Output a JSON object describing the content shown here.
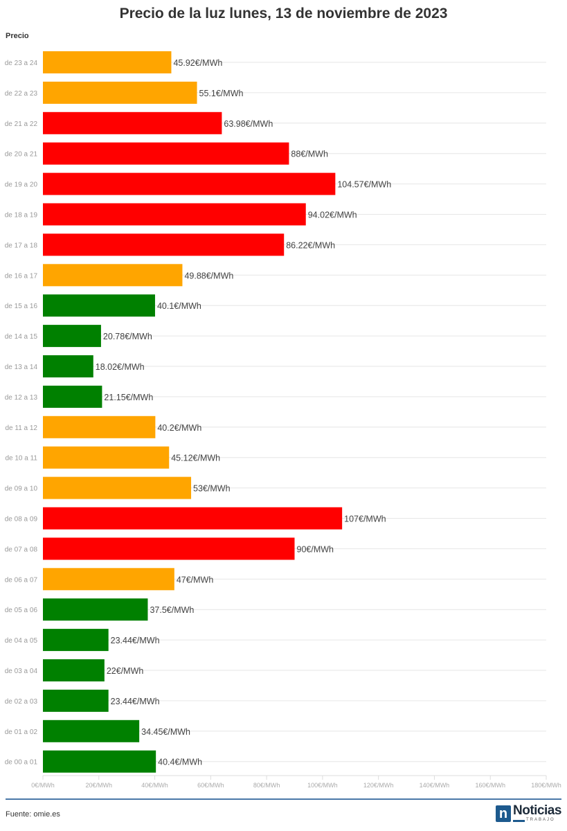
{
  "chart_data": {
    "type": "bar",
    "orientation": "horizontal",
    "title": "Precio de la luz lunes, 13 de noviembre de 2023",
    "ylabel": "Precio",
    "xlim": [
      0,
      180
    ],
    "xticks": [
      "0€/MWh",
      "20€/MWh",
      "40€/MWh",
      "60€/MWh",
      "80€/MWh",
      "100€/MWh",
      "120€/MWh",
      "140€/MWh",
      "160€/MWh",
      "180€/MWh"
    ],
    "grid": true,
    "unit": "€/MWh",
    "colors": {
      "green": "#008000",
      "orange": "#ffa500",
      "red": "#ff0000"
    },
    "categories": [
      "de 23 a 24",
      "de 22 a 23",
      "de 21 a 22",
      "de 20 a 21",
      "de 19 a 20",
      "de 18 a 19",
      "de 17 a 18",
      "de 16 a 17",
      "de 15 a 16",
      "de 14 a 15",
      "de 13 a 14",
      "de 12 a 13",
      "de 11 a 12",
      "de 10 a 11",
      "de 09 a 10",
      "de 08 a 09",
      "de 07 a 08",
      "de 06 a 07",
      "de 05 a 06",
      "de 04 a 05",
      "de 03 a 04",
      "de 02 a 03",
      "de 01 a 02",
      "de 00 a 01"
    ],
    "values": [
      45.92,
      55.1,
      63.98,
      88,
      104.57,
      94.02,
      86.22,
      49.88,
      40.1,
      20.78,
      18.02,
      21.15,
      40.2,
      45.12,
      53,
      107,
      90,
      47,
      37.5,
      23.44,
      22,
      23.44,
      34.45,
      40.4
    ],
    "labels": [
      "45.92€/MWh",
      "55.1€/MWh",
      "63.98€/MWh",
      "88€/MWh",
      "104.57€/MWh",
      "94.02€/MWh",
      "86.22€/MWh",
      "49.88€/MWh",
      "40.1€/MWh",
      "20.78€/MWh",
      "18.02€/MWh",
      "21.15€/MWh",
      "40.2€/MWh",
      "45.12€/MWh",
      "53€/MWh",
      "107€/MWh",
      "90€/MWh",
      "47€/MWh",
      "37.5€/MWh",
      "23.44€/MWh",
      "22€/MWh",
      "23.44€/MWh",
      "34.45€/MWh",
      "40.4€/MWh"
    ],
    "bar_colors": [
      "orange",
      "orange",
      "red",
      "red",
      "red",
      "red",
      "red",
      "orange",
      "green",
      "green",
      "green",
      "green",
      "orange",
      "orange",
      "orange",
      "red",
      "red",
      "orange",
      "green",
      "green",
      "green",
      "green",
      "green",
      "green"
    ]
  },
  "footer": {
    "source": "Fuente: omie.es",
    "logo_text": "Noticias",
    "logo_sub": "TRABAJO",
    "logo_mark": "n",
    "brand_color": "#1d5a8e"
  }
}
